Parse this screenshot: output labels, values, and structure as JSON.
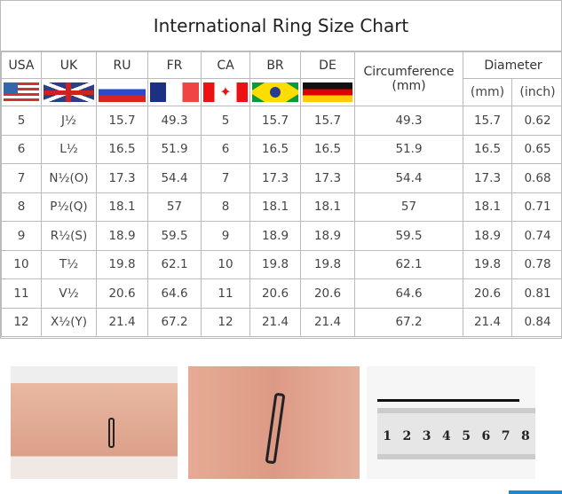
{
  "title": "International Ring Size Chart",
  "headers": [
    "USA",
    "UK",
    "RU",
    "FR",
    "CA",
    "BR",
    "DE"
  ],
  "circumference": {
    "label": "Circumference",
    "unit": "(mm)"
  },
  "diameter": {
    "label": "Diameter",
    "mm": "(mm)",
    "inch": "(inch)"
  },
  "flags": [
    "us-flag-icon",
    "uk-flag-icon",
    "russia-flag-icon",
    "france-flag-icon",
    "canada-flag-icon",
    "brazil-flag-icon",
    "germany-flag-icon"
  ],
  "rows": [
    [
      "5",
      "J½",
      "15.7",
      "49.3",
      "5",
      "15.7",
      "15.7",
      "49.3",
      "15.7",
      "0.62"
    ],
    [
      "6",
      "L½",
      "16.5",
      "51.9",
      "6",
      "16.5",
      "16.5",
      "51.9",
      "16.5",
      "0.65"
    ],
    [
      "7",
      "N½(O)",
      "17.3",
      "54.4",
      "7",
      "17.3",
      "17.3",
      "54.4",
      "17.3",
      "0.68"
    ],
    [
      "8",
      "P½(Q)",
      "18.1",
      "57",
      "8",
      "18.1",
      "18.1",
      "57",
      "18.1",
      "0.71"
    ],
    [
      "9",
      "R½(S)",
      "18.9",
      "59.5",
      "9",
      "18.9",
      "18.9",
      "59.5",
      "18.9",
      "0.74"
    ],
    [
      "10",
      "T½",
      "19.8",
      "62.1",
      "10",
      "19.8",
      "19.8",
      "62.1",
      "19.8",
      "0.78"
    ],
    [
      "11",
      "V½",
      "20.6",
      "64.6",
      "11",
      "20.6",
      "20.6",
      "64.6",
      "20.6",
      "0.81"
    ],
    [
      "12",
      "X½(Y)",
      "21.4",
      "67.2",
      "12",
      "21.4",
      "21.4",
      "67.2",
      "21.4",
      "0.84"
    ]
  ],
  "ruler": {
    "numbers": [
      "1",
      "2",
      "3",
      "4",
      "5",
      "6",
      "7",
      "8"
    ]
  },
  "accent": "#1a8ad0"
}
